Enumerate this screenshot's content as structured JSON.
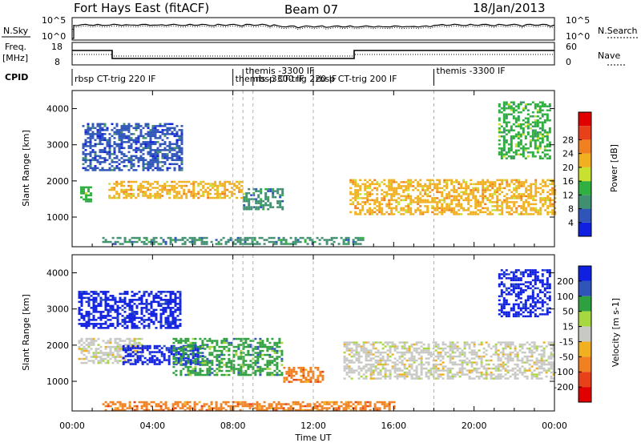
{
  "header": {
    "station": "Fort Hays East (fitACF)",
    "beam": "Beam 07",
    "date": "18/Jan/2013"
  },
  "noise_panel": {
    "left_label": "N.Sky",
    "left_ticks": [
      "10^5",
      "10^0"
    ],
    "right_label": "N.Search",
    "right_ticks": [
      "10^5",
      "10^0"
    ]
  },
  "freq_panel": {
    "left_label_1": "Freq.",
    "left_label_2": "[MHz]",
    "left_ticks": [
      "18",
      "8"
    ],
    "right_label": "Nave",
    "right_ticks": [
      "60",
      "0"
    ]
  },
  "cpid_panel": {
    "label": "CPID",
    "programs": [
      {
        "text": "rbsp CT-trig 220 IF",
        "start": 0.0
      },
      {
        "text": "themis -3300 IF",
        "start": 8.0
      },
      {
        "text": "themis -3300 IF",
        "start": 8.5
      },
      {
        "text": "rbsp CT-trig 220 IF",
        "start": 9.0
      },
      {
        "text": "rbsp CT-trig 200 IF",
        "start": 12.0
      },
      {
        "text": "themis -3300 IF",
        "start": 18.0
      }
    ]
  },
  "x_axis": {
    "label": "Time UT",
    "ticks": [
      "00:00",
      "04:00",
      "08:00",
      "12:00",
      "16:00",
      "20:00",
      "00:00"
    ]
  },
  "chart_data": [
    {
      "type": "heatmap",
      "title": "",
      "xlabel": "Time UT",
      "ylabel": "Slant Range [km]",
      "xlim": [
        0,
        24
      ],
      "ylim": [
        180,
        4500
      ],
      "yticks": [
        1000,
        2000,
        3000,
        4000
      ],
      "colorbar": {
        "label": "Power [dB]",
        "ticks": [
          "4",
          "8",
          "12",
          "16",
          "20",
          "24",
          "28"
        ],
        "colors": [
          "#1020e0",
          "#2f55b8",
          "#3f8f70",
          "#2fb040",
          "#c8e030",
          "#f0b020",
          "#f08020",
          "#e84018",
          "#e00000"
        ]
      },
      "echo_regions": [
        {
          "t0": 0.4,
          "t1": 0.9,
          "r0": 1450,
          "r1": 1850,
          "level": 14
        },
        {
          "t0": 0.5,
          "t1": 5.5,
          "r0": 2300,
          "r1": 3600,
          "level": 8
        },
        {
          "t0": 1.8,
          "t1": 8.5,
          "r0": 1550,
          "r1": 2000,
          "level": 22
        },
        {
          "t0": 8.5,
          "t1": 10.5,
          "r0": 1200,
          "r1": 1800,
          "level": 12
        },
        {
          "t0": 13.8,
          "t1": 24.0,
          "r0": 1100,
          "r1": 2050,
          "level": 22
        },
        {
          "t0": 21.2,
          "t1": 23.8,
          "r0": 2600,
          "r1": 4200,
          "level": 16
        },
        {
          "t0": 1.5,
          "t1": 14.5,
          "r0": 250,
          "r1": 450,
          "level": 10
        }
      ]
    },
    {
      "type": "heatmap",
      "title": "",
      "xlabel": "Time UT",
      "ylabel": "Slant Range [km]",
      "xlim": [
        0,
        24
      ],
      "ylim": [
        180,
        4500
      ],
      "yticks": [
        1000,
        2000,
        3000,
        4000
      ],
      "colorbar": {
        "label": "Velocity [m s-1]",
        "ticks": [
          "200",
          "100",
          "50",
          "15",
          "-15",
          "-50",
          "-100",
          "-200"
        ],
        "colors": [
          "#1020e0",
          "#2f55b8",
          "#2fa040",
          "#a8d840",
          "#c8c8c4",
          "#f0b020",
          "#f08020",
          "#e84018",
          "#e00000"
        ]
      },
      "echo_regions": [
        {
          "t0": 0.3,
          "t1": 5.4,
          "r0": 2500,
          "r1": 3500,
          "velocity": 200
        },
        {
          "t0": 0.3,
          "t1": 3.5,
          "r0": 1500,
          "r1": 2200,
          "velocity": 0
        },
        {
          "t0": 2.5,
          "t1": 6.5,
          "r0": 1500,
          "r1": 2000,
          "velocity": 200
        },
        {
          "t0": 5.0,
          "t1": 10.5,
          "r0": 1200,
          "r1": 2200,
          "velocity": 60
        },
        {
          "t0": 10.5,
          "t1": 12.5,
          "r0": 1000,
          "r1": 1400,
          "velocity": -60
        },
        {
          "t0": 13.5,
          "t1": 24.0,
          "r0": 1100,
          "r1": 2100,
          "velocity": 0
        },
        {
          "t0": 21.2,
          "t1": 23.8,
          "r0": 2800,
          "r1": 4100,
          "velocity": 200
        },
        {
          "t0": 1.5,
          "t1": 16.0,
          "r0": 200,
          "r1": 450,
          "velocity": -60
        }
      ]
    }
  ]
}
